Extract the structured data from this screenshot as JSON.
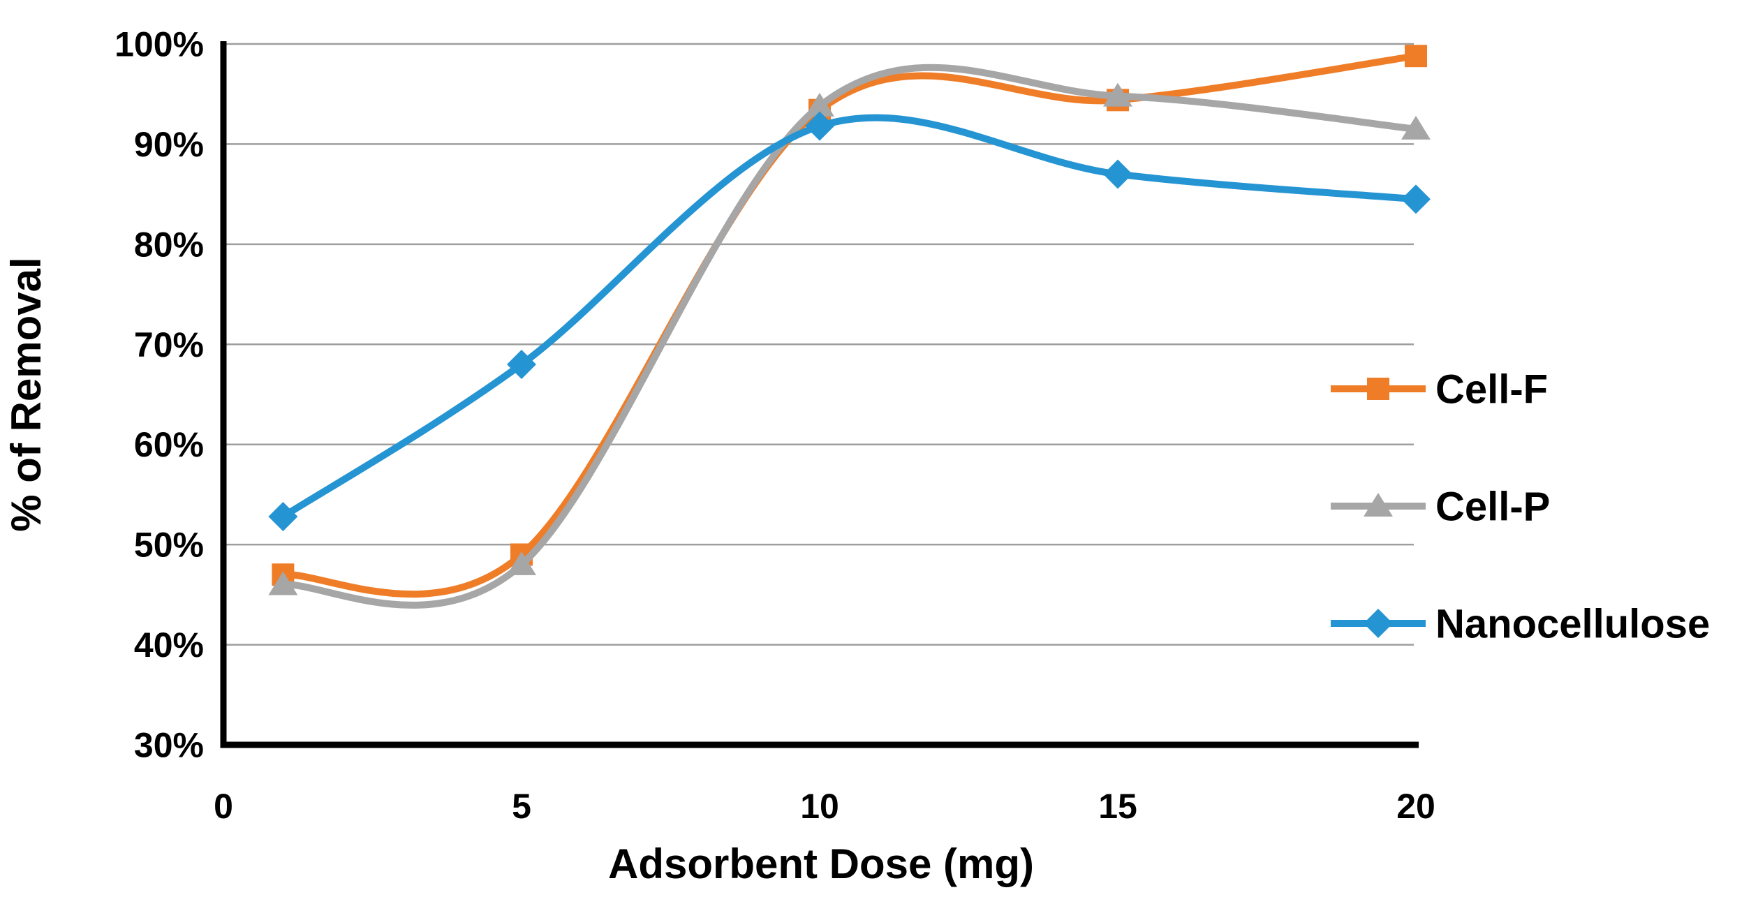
{
  "chart_data": {
    "type": "line",
    "line_style": "smooth",
    "title": "",
    "xlabel": "Adsorbent Dose (mg)",
    "ylabel": "% of Removal",
    "x": [
      1,
      5,
      10,
      15,
      20
    ],
    "x_tick_labels": [
      "0",
      "5",
      "10",
      "15",
      "20"
    ],
    "x_tick_values": [
      0,
      5,
      10,
      15,
      20
    ],
    "y_tick_labels": [
      "100%",
      "90%",
      "80%",
      "70%",
      "60%",
      "50%",
      "40%",
      "30%"
    ],
    "y_tick_values": [
      100,
      90,
      80,
      70,
      60,
      50,
      40,
      30
    ],
    "xlim": [
      0,
      20
    ],
    "ylim": [
      30,
      100
    ],
    "grid": "horizontal-only",
    "legend_position": "right",
    "axis_color": "#000000",
    "gridline_color": "#9E9E9E",
    "series": [
      {
        "name": "Cell-F",
        "marker": "square",
        "color": "#EF7D28",
        "values": [
          47,
          49,
          93.4,
          94.4,
          98.8
        ]
      },
      {
        "name": "Cell-P",
        "marker": "triangle",
        "color": "#A6A6A6",
        "values": [
          46,
          48,
          93.8,
          94.8,
          91.5
        ]
      },
      {
        "name": "Nanocellulose",
        "marker": "diamond",
        "color": "#2494D3",
        "values": [
          52.8,
          68,
          91.8,
          87,
          84.5
        ]
      }
    ]
  }
}
